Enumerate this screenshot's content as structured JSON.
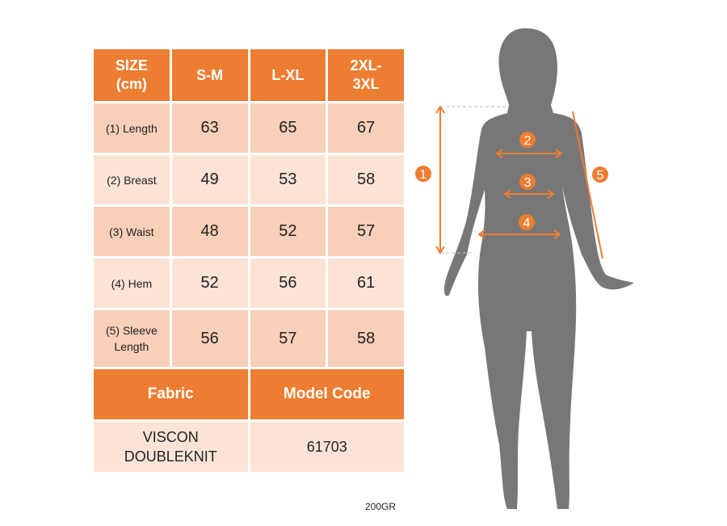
{
  "table": {
    "header": [
      "SIZE (cm)",
      "S-M",
      "L-XL",
      "2XL-3XL"
    ],
    "header_lines": [
      [
        "SIZE",
        "(cm)"
      ],
      [
        "S-M"
      ],
      [
        "L-XL"
      ],
      [
        "2XL-",
        "3XL"
      ]
    ],
    "rows": [
      {
        "label": "(1) Length",
        "values": [
          "63",
          "65",
          "67"
        ]
      },
      {
        "label": "(2) Breast",
        "values": [
          "49",
          "53",
          "58"
        ]
      },
      {
        "label": "(3) Waist",
        "values": [
          "48",
          "52",
          "57"
        ]
      },
      {
        "label": "(4) Hem",
        "values": [
          "52",
          "56",
          "61"
        ]
      },
      {
        "label_lines": [
          "(5) Sleeve",
          "Length"
        ],
        "values": [
          "56",
          "57",
          "58"
        ]
      }
    ],
    "fabric_header": "Fabric",
    "model_code_header": "Model Code",
    "fabric_lines": [
      "VISCON",
      "DOUBLEKNIT"
    ],
    "model_code": "61703"
  },
  "weight": "200GR",
  "figure": {
    "markers": [
      "1",
      "2",
      "3",
      "4",
      "5"
    ]
  },
  "colors": {
    "accent": "#ED7D31",
    "row_dark": "#F8CFB9",
    "row_light": "#FBE4D6",
    "silhouette": "#777777"
  }
}
